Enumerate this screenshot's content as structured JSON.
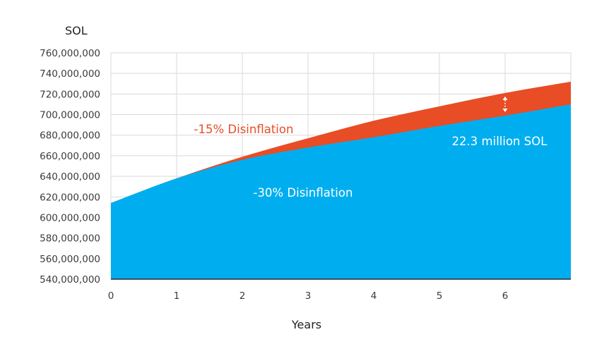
{
  "chart_data": {
    "type": "area",
    "ylabel": "SOL",
    "xlabel": "Years",
    "x_ticks": [
      "0",
      "1",
      "2",
      "3",
      "4",
      "5",
      "6"
    ],
    "xlim": [
      0,
      7
    ],
    "ylim": [
      540000000,
      760000000
    ],
    "y_ticks": [
      "540,000,000",
      "560,000,000",
      "580,000,000",
      "600,000,000",
      "620,000,000",
      "640,000,000",
      "660,000,000",
      "680,000,000",
      "700,000,000",
      "720,000,000",
      "740,000,000",
      "760,000,000"
    ],
    "grid": true,
    "series": [
      {
        "name": "-30% Disinflation",
        "color": "#00AEEF",
        "x": [
          0,
          1,
          2,
          3,
          4,
          5,
          6,
          7
        ],
        "values": [
          614000000,
          638000000,
          656000000,
          668000000,
          678000000,
          689000000,
          699000000,
          710000000
        ]
      },
      {
        "name": "-15% Disinflation",
        "color": "#E84D25",
        "x": [
          0,
          1,
          2,
          3,
          4,
          5,
          6,
          7
        ],
        "values": [
          614000000,
          638000000,
          659000000,
          677000000,
          694000000,
          708000000,
          721000000,
          732000000
        ]
      }
    ],
    "annotations": [
      {
        "text": "22.3 million SOL",
        "x": 6,
        "color": "#ffffff"
      }
    ]
  }
}
